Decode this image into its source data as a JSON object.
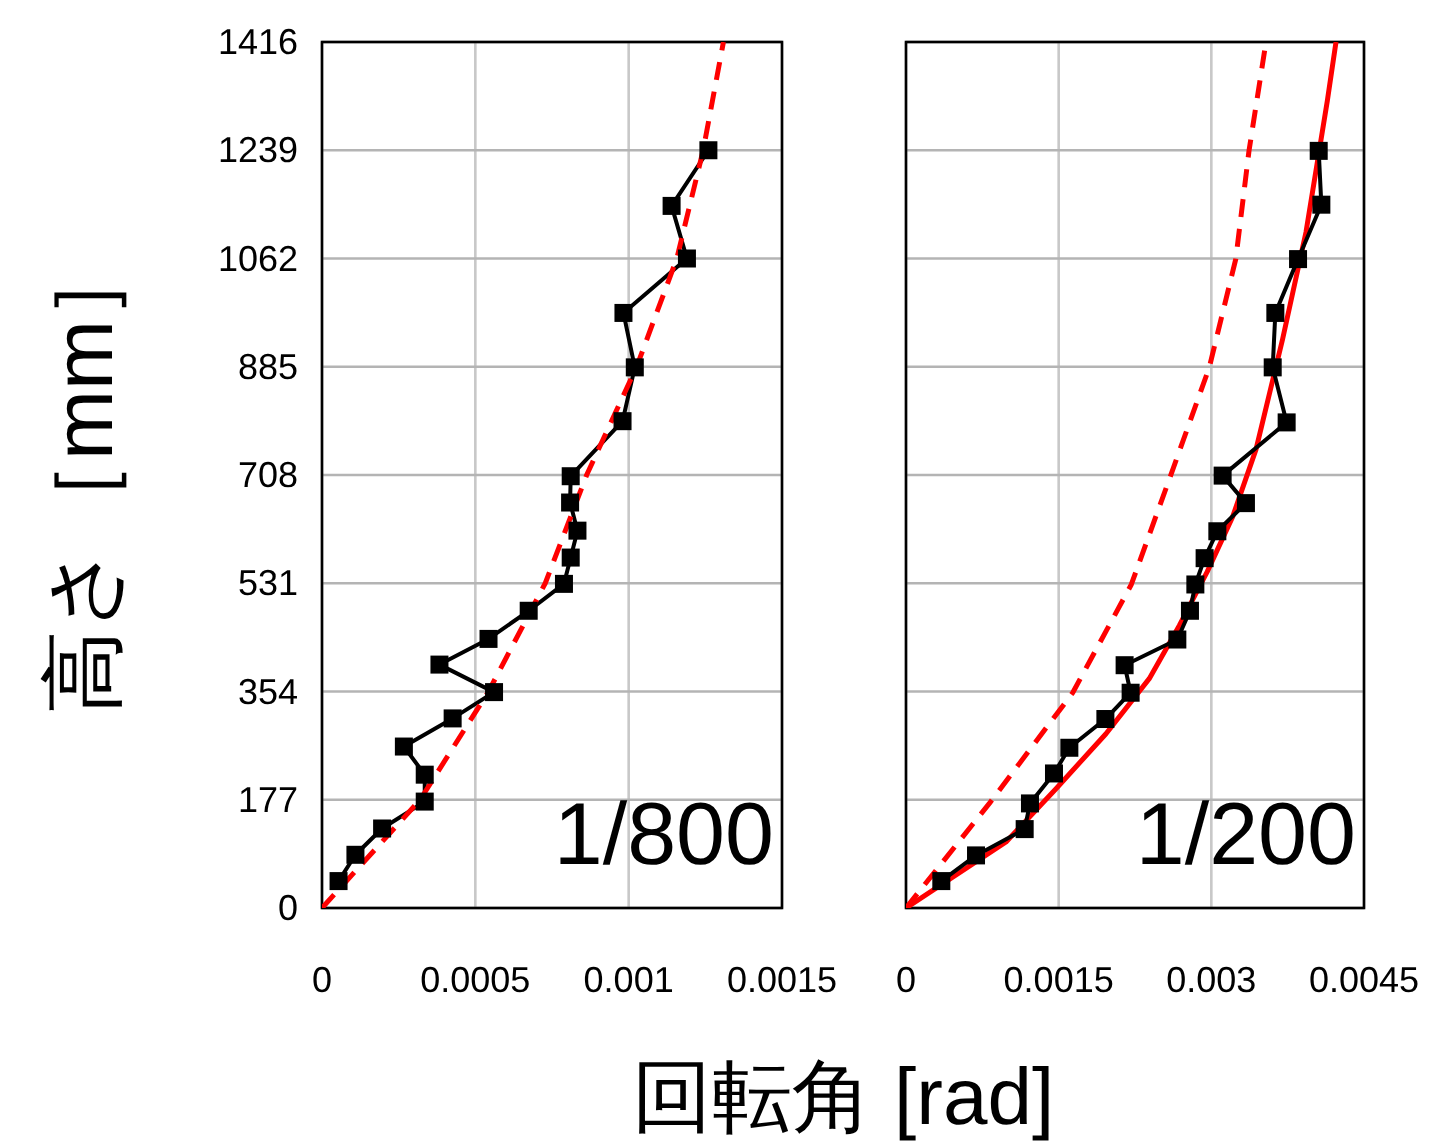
{
  "chart_data": [
    {
      "type": "line",
      "ylabel": "高さ［mm］",
      "xlabel": "回転角 [rad]",
      "annotations": [
        "1/800"
      ],
      "xlim": [
        0,
        0.0015
      ],
      "xticks": [
        0,
        0.0005,
        0.001,
        0.0015
      ],
      "ylim": [
        0,
        1416
      ],
      "yticks": [
        0,
        177,
        354,
        531,
        708,
        885,
        1062,
        1239,
        1416
      ],
      "grid": true,
      "series": [
        {
          "color": "#000000",
          "marker": "square",
          "line_style": "solid",
          "x": [
            5.4e-05,
            0.000109,
            0.000196,
            0.000335,
            0.000335,
            0.000267,
            0.000426,
            0.000561,
            0.000383,
            0.000543,
            0.000674,
            0.000789,
            0.000811,
            0.000833,
            0.000809,
            0.000811,
            0.00098,
            0.00102,
            0.000983,
            0.00119,
            0.00114,
            0.00126
          ],
          "values": [
            44,
            87,
            130,
            174,
            218,
            264,
            310,
            353,
            398,
            440,
            486,
            530,
            573,
            617,
            663,
            706,
            796,
            884,
            973,
            1062,
            1148,
            1239
          ]
        },
        {
          "color": "#ff0000",
          "marker": "none",
          "line_style": "dashed",
          "x": [
            0,
            0.00032,
            0.000543,
            0.000728,
            0.000863,
            0.001026,
            0.001157,
            0.001243,
            0.001309
          ],
          "values": [
            0,
            177,
            354,
            531,
            708,
            885,
            1062,
            1239,
            1416
          ]
        }
      ]
    },
    {
      "type": "line",
      "annotations": [
        "1/200"
      ],
      "xlim": [
        0,
        0.0045
      ],
      "xticks": [
        0,
        0.0015,
        0.003,
        0.0045
      ],
      "ylim": [
        0,
        1416
      ],
      "yticks": [
        0,
        177,
        354,
        531,
        708,
        885,
        1062,
        1239,
        1416
      ],
      "grid": true,
      "tick_labels": "x",
      "series": [
        {
          "color": "#ff0000",
          "marker": "none",
          "line_style": "dashed",
          "x": [
            0,
            0.000819,
            0.001638,
            0.002214,
            0.0026,
            0.00298,
            0.00324,
            0.00337,
            0.003537
          ],
          "values": [
            0,
            171,
            352,
            529,
            707,
            884,
            1061,
            1238,
            1416
          ]
        },
        {
          "color": "#ff0000",
          "marker": "none",
          "line_style": "solid",
          "x": [
            0,
            0.000983,
            0.001474,
            0.001965,
            0.00239,
            0.002686,
            0.00296,
            0.00321,
            0.003439,
            0.0037,
            0.00393,
            0.00414,
            0.004225
          ],
          "values": [
            0,
            108,
            195,
            285,
            375,
            462,
            550,
            640,
            750,
            930,
            1105,
            1320,
            1416
          ]
        },
        {
          "color": "#000000",
          "marker": "square",
          "line_style": "solid",
          "x": [
            0.000347,
            0.000688,
            0.001166,
            0.001218,
            0.001454,
            0.001605,
            0.001959,
            0.002207,
            0.002148,
            0.002666,
            0.00279,
            0.002843,
            0.002934,
            0.003059,
            0.00334,
            0.003111,
            0.00374,
            0.003603,
            0.003629,
            0.003852,
            0.004081,
            0.004055
          ],
          "values": [
            44,
            86,
            129,
            171,
            220,
            262,
            309,
            352,
            397,
            439,
            486,
            529,
            572,
            616,
            662,
            707,
            794,
            884,
            973,
            1061,
            1150,
            1238
          ]
        }
      ]
    }
  ]
}
